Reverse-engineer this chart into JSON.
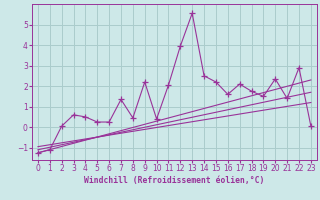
{
  "xlabel": "Windchill (Refroidissement éolien,°C)",
  "bg_color": "#cde8e8",
  "grid_color": "#aacccc",
  "line_color": "#993399",
  "x_data": [
    0,
    1,
    2,
    3,
    4,
    5,
    6,
    7,
    8,
    9,
    10,
    11,
    12,
    13,
    14,
    15,
    16,
    17,
    18,
    19,
    20,
    21,
    22,
    23
  ],
  "y_data": [
    -1.25,
    -1.1,
    0.05,
    0.6,
    0.5,
    0.25,
    0.25,
    1.35,
    0.45,
    2.2,
    0.4,
    2.05,
    3.95,
    5.55,
    2.5,
    2.2,
    1.6,
    2.1,
    1.75,
    1.5,
    2.35,
    1.4,
    2.9,
    0.05
  ],
  "trend1_x": [
    0,
    23
  ],
  "trend1_y": [
    -1.25,
    2.3
  ],
  "trend2_x": [
    0,
    23
  ],
  "trend2_y": [
    -1.1,
    1.7
  ],
  "trend3_x": [
    0,
    23
  ],
  "trend3_y": [
    -0.95,
    1.2
  ],
  "ylim": [
    -1.6,
    6.0
  ],
  "xlim": [
    -0.5,
    23.5
  ],
  "yticks": [
    -1,
    0,
    1,
    2,
    3,
    4,
    5
  ],
  "xticks": [
    0,
    1,
    2,
    3,
    4,
    5,
    6,
    7,
    8,
    9,
    10,
    11,
    12,
    13,
    14,
    15,
    16,
    17,
    18,
    19,
    20,
    21,
    22,
    23
  ],
  "xlabel_fontsize": 5.8,
  "tick_fontsize": 5.5
}
